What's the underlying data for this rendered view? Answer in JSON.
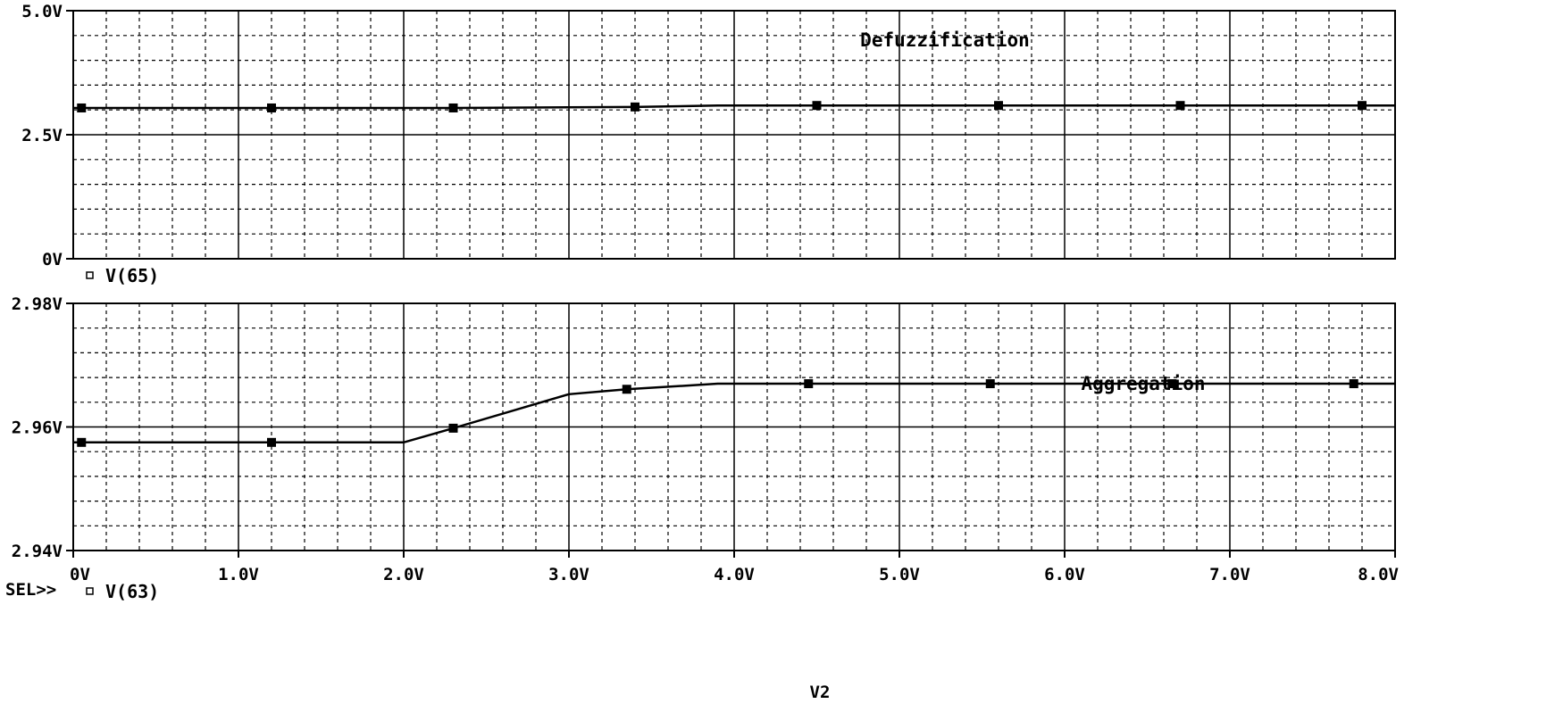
{
  "chart_data": [
    {
      "type": "line",
      "annotation": "Defuzzification",
      "legend": "V(65)",
      "xlim": [
        0,
        8
      ],
      "ylim": [
        0,
        5
      ],
      "ytick_values": [
        0,
        2.5,
        5
      ],
      "ytick_labels": [
        "0V",
        "2.5V",
        "5.0V"
      ],
      "x": [
        0,
        0.05,
        1.2,
        2.3,
        3.4,
        3.9,
        4.5,
        5.6,
        6.7,
        7.8,
        8.0
      ],
      "y": [
        3.04,
        3.04,
        3.04,
        3.04,
        3.06,
        3.09,
        3.09,
        3.09,
        3.09,
        3.09,
        3.09
      ],
      "marker_x": [
        0.05,
        1.2,
        2.3,
        3.4,
        4.5,
        5.6,
        6.7,
        7.8
      ],
      "marker_y": [
        3.04,
        3.04,
        3.04,
        3.06,
        3.09,
        3.09,
        3.09,
        3.09
      ],
      "grid": true
    },
    {
      "type": "line",
      "annotation": "Aggregation",
      "legend": "V(63)",
      "xlim": [
        0,
        8
      ],
      "ylim": [
        2.94,
        2.98
      ],
      "ytick_values": [
        2.94,
        2.96,
        2.98
      ],
      "ytick_labels": [
        "2.94V",
        "2.96V",
        "2.98V"
      ],
      "x": [
        0,
        0.05,
        1.2,
        2.0,
        2.3,
        3.0,
        3.35,
        3.9,
        4.45,
        5.55,
        6.65,
        7.75,
        8.0
      ],
      "y": [
        2.9575,
        2.9575,
        2.9575,
        2.9575,
        2.9598,
        2.9653,
        2.9661,
        2.967,
        2.967,
        2.967,
        2.967,
        2.967,
        2.967
      ],
      "marker_x": [
        0.05,
        1.2,
        2.3,
        3.35,
        4.45,
        5.55,
        6.65,
        7.75
      ],
      "marker_y": [
        2.9575,
        2.9575,
        2.9598,
        2.9661,
        2.967,
        2.967,
        2.967,
        2.967
      ],
      "grid": true
    }
  ],
  "x_axis": {
    "label": "V2",
    "tick_values": [
      0,
      1,
      2,
      3,
      4,
      5,
      6,
      7,
      8
    ],
    "tick_labels": [
      "0V",
      "1.0V",
      "2.0V",
      "3.0V",
      "4.0V",
      "5.0V",
      "6.0V",
      "7.0V",
      "8.0V"
    ]
  },
  "cursor_label": "SEL>>"
}
